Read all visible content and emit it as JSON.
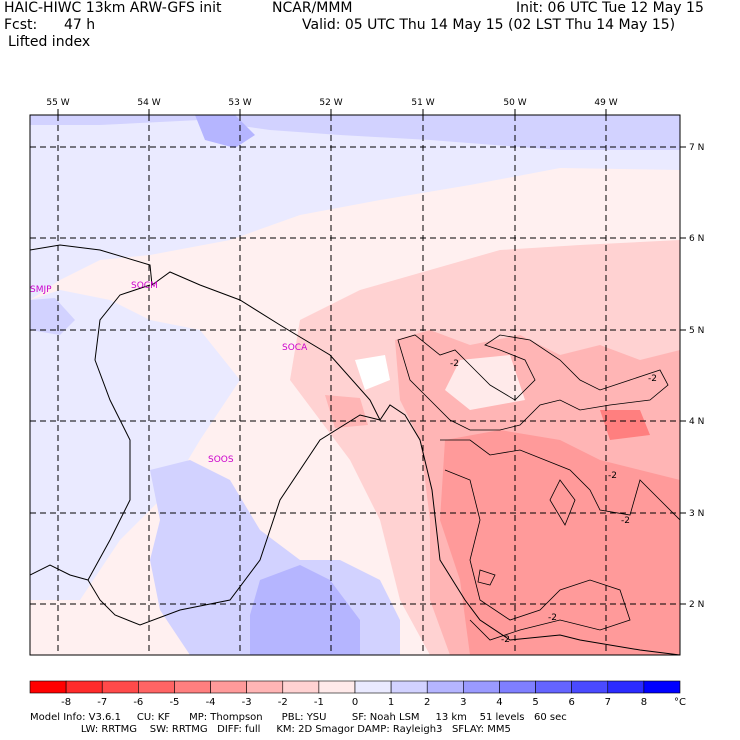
{
  "header": {
    "model": "HAIC-HIWC 13km ARW-GFS init",
    "org": "NCAR/MMM",
    "init": "Init: 06 UTC Tue 12 May 15",
    "fcst_label": "Fcst:",
    "fcst_value": "47 h",
    "valid": "Valid: 05 UTC Thu 14 May 15 (02 LST Thu 14 May 15)",
    "field": "Lifted index"
  },
  "map": {
    "lon_labels": [
      "55 W",
      "54 W",
      "53 W",
      "52 W",
      "51 W",
      "50 W",
      "49 W"
    ],
    "lat_labels": [
      "7 N",
      "6 N",
      "5 N",
      "4 N",
      "3 N",
      "2 N"
    ],
    "stations": [
      "SMJP",
      "SOCM",
      "SOCA",
      "SOOS"
    ],
    "contour_labels": [
      "-2",
      "-2",
      "-2",
      "-2",
      "-2",
      "-2"
    ]
  },
  "colorbar": {
    "labels": [
      "-8",
      "-7",
      "-6",
      "-5",
      "-4",
      "-3",
      "-2",
      "-1",
      "0",
      "1",
      "2",
      "3",
      "4",
      "5",
      "6",
      "7",
      "8"
    ],
    "unit": "°C",
    "colors": [
      "#ff0000",
      "#ff2b2b",
      "#ff4a4a",
      "#ff6464",
      "#ff7f7f",
      "#ff9a9a",
      "#ffb5b5",
      "#ffd2d2",
      "#ffeaea",
      "#eaeaff",
      "#d2d2ff",
      "#b5b5ff",
      "#9a9aff",
      "#7f7fff",
      "#6464ff",
      "#4a4aff",
      "#2b2bff",
      "#0000ff"
    ]
  },
  "footer": {
    "line1": "Model Info: V3.6.1     CU: KF      MP: Thompson      PBL: YSU        SF: Noah LSM     13 km    51 levels   60 sec",
    "line2": "                LW: RRTMG    SW: RRTMG   DIFF: full     KM: 2D Smagor DAMP: Rayleigh3   SFLAY: MM5"
  }
}
